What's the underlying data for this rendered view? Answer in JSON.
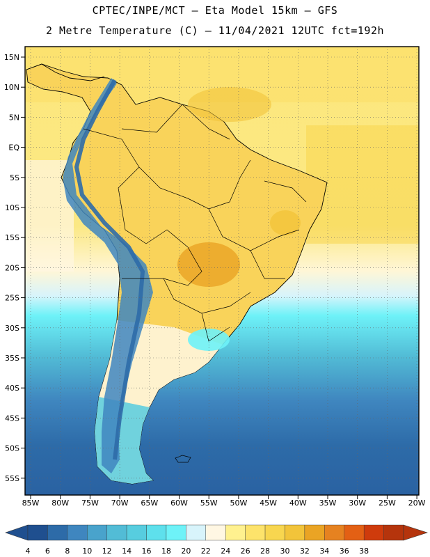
{
  "header": {
    "line1": "CPTEC/INPE/MCT –  Eta Model 15km – GFS",
    "line2": "2 Metre Temperature (C) – 11/04/2021 12UTC fct=192h"
  },
  "map": {
    "lat_labels": [
      "15N",
      "10N",
      "5N",
      "EQ",
      "5S",
      "10S",
      "15S",
      "20S",
      "25S",
      "30S",
      "35S",
      "40S",
      "45S",
      "50S",
      "55S"
    ],
    "lon_labels": [
      "85W",
      "80W",
      "75W",
      "70W",
      "65W",
      "60W",
      "55W",
      "50W",
      "45W",
      "40W",
      "35W",
      "30W",
      "25W",
      "20W"
    ]
  },
  "colorbar": {
    "ticks": [
      "4",
      "6",
      "8",
      "10",
      "12",
      "14",
      "16",
      "18",
      "20",
      "22",
      "24",
      "26",
      "28",
      "30",
      "32",
      "34",
      "36",
      "38"
    ],
    "colors": [
      "#1f4f8f",
      "#2d6ba8",
      "#3f86bf",
      "#49a3cc",
      "#52bcd6",
      "#57cddf",
      "#5ee0ec",
      "#6ef2f8",
      "#d8f4fb",
      "#fff7e3",
      "#fff18f",
      "#fde36b",
      "#f8d64f",
      "#f2c43a",
      "#eaa424",
      "#e68220",
      "#e36014",
      "#cf3b0c",
      "#b5340c"
    ]
  }
}
